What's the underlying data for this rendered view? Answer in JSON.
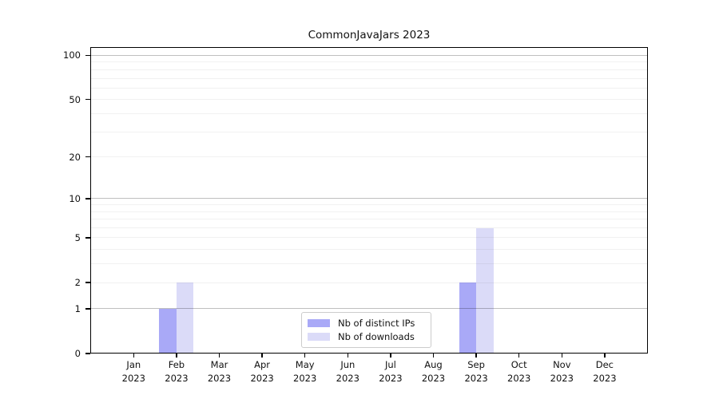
{
  "title": "CommonJavaJars 2023",
  "chart_data": {
    "type": "bar",
    "title": "CommonJavaJars 2023",
    "year": "2023",
    "months": [
      "Jan",
      "Feb",
      "Mar",
      "Apr",
      "May",
      "Jun",
      "Jul",
      "Aug",
      "Sep",
      "Oct",
      "Nov",
      "Dec"
    ],
    "categories": [
      "Jan 2023",
      "Feb 2023",
      "Mar 2023",
      "Apr 2023",
      "May 2023",
      "Jun 2023",
      "Jul 2023",
      "Aug 2023",
      "Sep 2023",
      "Oct 2023",
      "Nov 2023",
      "Dec 2023"
    ],
    "series": [
      {
        "name": "Nb of distinct IPs",
        "color": "#a9a9f7",
        "values": [
          0,
          1,
          0,
          0,
          0,
          0,
          0,
          0,
          2,
          0,
          0,
          0
        ]
      },
      {
        "name": "Nb of downloads",
        "color": "#dbdbf8",
        "values": [
          0,
          2,
          0,
          0,
          0,
          0,
          0,
          0,
          6,
          0,
          0,
          0
        ]
      }
    ],
    "xlabel": "",
    "ylabel": "",
    "yscale": "log1p",
    "yticks": [
      0,
      1,
      2,
      5,
      10,
      20,
      50,
      100
    ],
    "ylim": [
      0,
      114
    ],
    "grid": true,
    "grid_major_values": [
      1,
      10,
      100
    ],
    "grid_minor_values": [
      2,
      3,
      4,
      5,
      6,
      7,
      8,
      9,
      20,
      30,
      40,
      50,
      60,
      70,
      80,
      90
    ],
    "legend_position": "lower center"
  },
  "colors": {
    "distinct_ips_bar": "#a9a9f7",
    "downloads_bar": "#dbdbf8",
    "grid_major": "rgba(0,0,0,0.25)",
    "grid_minor": "rgba(0,0,0,0.055)",
    "axis_frame": "#000000",
    "background": "#ffffff",
    "legend_border": "#cccccc"
  },
  "legend": {
    "items": [
      {
        "label": "Nb of distinct IPs"
      },
      {
        "label": "Nb of downloads"
      }
    ]
  }
}
